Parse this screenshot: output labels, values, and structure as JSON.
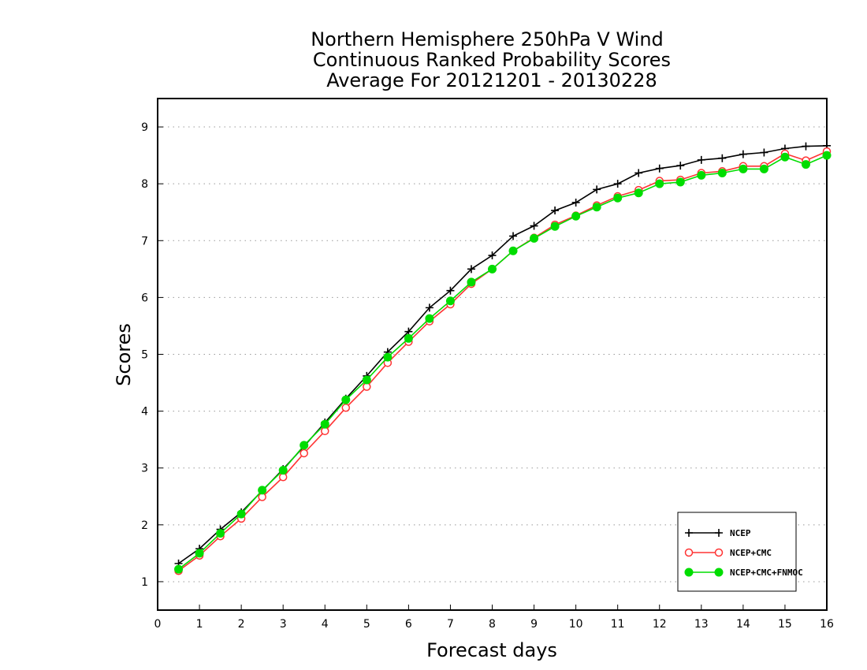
{
  "chart_data": {
    "type": "line",
    "title": [
      "Northern Hemisphere 250hPa V Wind",
      "Continuous Ranked Probability Scores",
      "Average For 20121201 - 20130228"
    ],
    "xlabel": "Forecast days",
    "ylabel": "Scores",
    "xlim": [
      0,
      16
    ],
    "ylim": [
      0.5,
      9.5
    ],
    "xticks": [
      0,
      1,
      2,
      3,
      4,
      5,
      6,
      7,
      8,
      9,
      10,
      11,
      12,
      13,
      14,
      15,
      16
    ],
    "yticks": [
      1,
      2,
      3,
      4,
      5,
      6,
      7,
      8,
      9
    ],
    "grid": "horizontal-dotted",
    "legend_position": "bottom-right",
    "x": [
      0.5,
      1,
      1.5,
      2,
      2.5,
      3,
      3.5,
      4,
      4.5,
      5,
      5.5,
      6,
      6.5,
      7,
      7.5,
      8,
      8.5,
      9,
      9.5,
      10,
      10.5,
      11,
      11.5,
      12,
      12.5,
      13,
      13.5,
      14,
      14.5,
      15,
      15.5,
      16
    ],
    "series": [
      {
        "name": "NCEP",
        "color": "#000000",
        "marker": "plus",
        "values": [
          1.32,
          1.58,
          1.92,
          2.22,
          2.6,
          2.98,
          3.38,
          3.8,
          4.22,
          4.62,
          5.04,
          5.4,
          5.82,
          6.12,
          6.5,
          6.74,
          7.08,
          7.26,
          7.53,
          7.67,
          7.9,
          8.0,
          8.19,
          8.27,
          8.32,
          8.42,
          8.45,
          8.52,
          8.55,
          8.62,
          8.66,
          8.67
        ]
      },
      {
        "name": "NCEP+CMC",
        "color": "#ff3333",
        "marker": "open-circle",
        "values": [
          1.19,
          1.46,
          1.8,
          2.11,
          2.49,
          2.84,
          3.26,
          3.65,
          4.06,
          4.43,
          4.85,
          5.22,
          5.58,
          5.88,
          6.24,
          6.5,
          6.82,
          7.05,
          7.28,
          7.44,
          7.62,
          7.78,
          7.89,
          8.05,
          8.07,
          8.19,
          8.22,
          8.31,
          8.31,
          8.53,
          8.41,
          8.57
        ]
      },
      {
        "name": "NCEP+CMC+FNMOC",
        "color": "#00dd00",
        "marker": "filled-circle",
        "values": [
          1.22,
          1.5,
          1.85,
          2.19,
          2.61,
          2.96,
          3.4,
          3.77,
          4.2,
          4.55,
          4.95,
          5.28,
          5.63,
          5.94,
          6.27,
          6.5,
          6.82,
          7.04,
          7.25,
          7.43,
          7.59,
          7.75,
          7.84,
          8.0,
          8.03,
          8.15,
          8.19,
          8.26,
          8.26,
          8.47,
          8.34,
          8.5
        ]
      }
    ]
  }
}
